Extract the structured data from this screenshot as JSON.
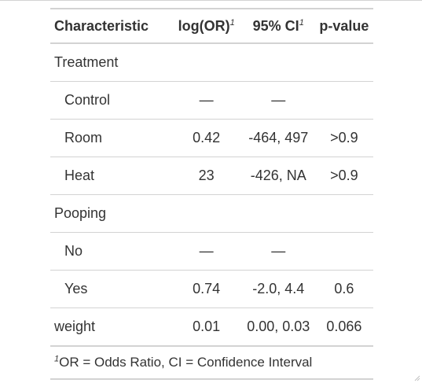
{
  "table": {
    "headers": [
      {
        "label": "Characteristic",
        "sup": ""
      },
      {
        "label": "log(OR)",
        "sup": "1"
      },
      {
        "label": "95% CI",
        "sup": "1"
      },
      {
        "label": "p-value",
        "sup": ""
      }
    ],
    "rows": [
      {
        "label": "Treatment",
        "log_or": "",
        "ci": "",
        "p": ""
      },
      {
        "label": "Control",
        "log_or": "—",
        "ci": "—",
        "p": ""
      },
      {
        "label": "Room",
        "log_or": "0.42",
        "ci": "-464, 497",
        "p": ">0.9"
      },
      {
        "label": "Heat",
        "log_or": "23",
        "ci": "-426, NA",
        "p": ">0.9"
      },
      {
        "label": "Pooping",
        "log_or": "",
        "ci": "",
        "p": ""
      },
      {
        "label": "No",
        "log_or": "—",
        "ci": "—",
        "p": ""
      },
      {
        "label": "Yes",
        "log_or": "0.74",
        "ci": "-2.0, 4.4",
        "p": "0.6"
      },
      {
        "label": "weight",
        "log_or": "0.01",
        "ci": "0.00, 0.03",
        "p": "0.066"
      }
    ],
    "footnote": {
      "sup": "1",
      "text": "OR = Odds Ratio, CI = Confidence Interval"
    }
  }
}
